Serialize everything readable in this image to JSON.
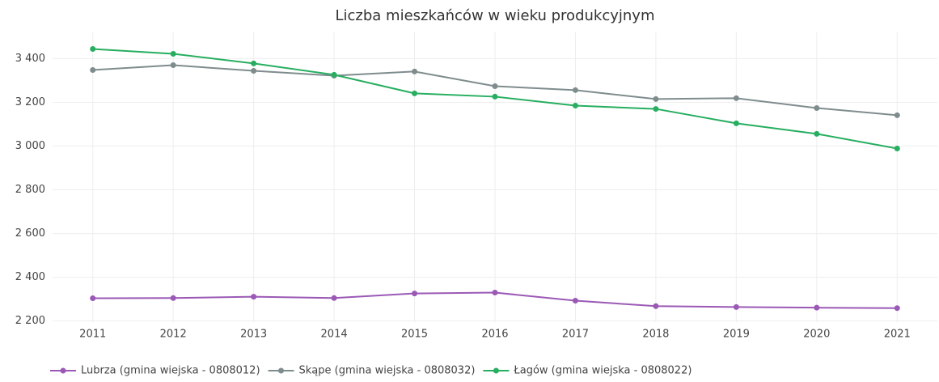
{
  "chart_data": {
    "type": "line",
    "title": "Liczba mieszkańców w wieku produkcyjnym",
    "x": [
      2011,
      2012,
      2013,
      2014,
      2015,
      2016,
      2017,
      2018,
      2019,
      2020,
      2021
    ],
    "xlim": [
      2010.5,
      2021.5
    ],
    "xticks": [
      2011,
      2012,
      2013,
      2014,
      2015,
      2016,
      2017,
      2018,
      2019,
      2020,
      2021
    ],
    "ylim": [
      2195,
      3520
    ],
    "yticks": [
      {
        "value": 2200,
        "label": "2 200"
      },
      {
        "value": 2400,
        "label": "2 400"
      },
      {
        "value": 2600,
        "label": "2 600"
      },
      {
        "value": 2800,
        "label": "2 800"
      },
      {
        "value": 3000,
        "label": "3 000"
      },
      {
        "value": 3200,
        "label": "3 200"
      },
      {
        "value": 3400,
        "label": "3 400"
      }
    ],
    "grid": true,
    "legend": "bottom",
    "series": [
      {
        "name": "Lubrza (gmina wiejska - 0808012)",
        "color": "#9b59b6",
        "values": [
          2304,
          2305,
          2311,
          2305,
          2326,
          2330,
          2293,
          2268,
          2264,
          2261,
          2259
        ]
      },
      {
        "name": "Skąpe (gmina wiejska - 0808032)",
        "color": "#7f8c8d",
        "values": [
          3348,
          3370,
          3344,
          3322,
          3341,
          3274,
          3256,
          3215,
          3219,
          3174,
          3141
        ]
      },
      {
        "name": "Łagów (gmina wiejska - 0808022)",
        "color": "#27ae60",
        "values": [
          3444,
          3422,
          3378,
          3326,
          3241,
          3226,
          3185,
          3170,
          3104,
          3056,
          2989
        ]
      }
    ]
  }
}
